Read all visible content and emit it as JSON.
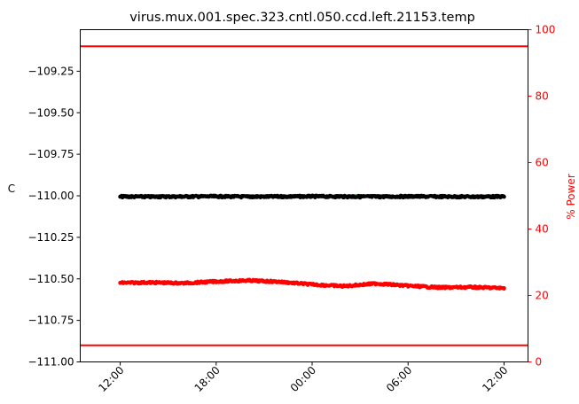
{
  "chart_data": {
    "type": "line",
    "title": "virus.mux.001.spec.323.cntl.050.ccd.left.21153.temp",
    "left_axis": {
      "label": "C",
      "ylim": [
        -111.0,
        -109.0
      ],
      "ticks": [
        -111.0,
        -110.75,
        -110.5,
        -110.25,
        -110.0,
        -109.75,
        -109.5,
        -109.25
      ],
      "tick_labels": [
        "−111.00",
        "−110.75",
        "−110.50",
        "−110.25",
        "−110.00",
        "−109.75",
        "−109.50",
        "−109.25"
      ]
    },
    "right_axis": {
      "label": "% Power",
      "color": "#ff0000",
      "ylim": [
        0,
        100
      ],
      "ticks": [
        0,
        20,
        40,
        60,
        80,
        100
      ],
      "tick_labels": [
        "0",
        "20",
        "40",
        "60",
        "80",
        "100"
      ]
    },
    "x_axis": {
      "unit": "hours",
      "xlim": [
        -2.5,
        25.5
      ],
      "ticks": [
        0,
        6,
        12,
        18,
        24
      ],
      "tick_labels": [
        "12:00",
        "18:00",
        "00:00",
        "06:00",
        "12:00"
      ]
    },
    "series": [
      {
        "axis": "left",
        "color": "#008000",
        "style": "line",
        "x": [
          0,
          6,
          12,
          18,
          24
        ],
        "values": [
          -110.0,
          -110.0,
          -110.0,
          -110.0,
          -110.0
        ]
      },
      {
        "axis": "left",
        "color": "#000000",
        "style": "markers",
        "x": [
          0,
          2,
          4,
          6,
          8,
          10,
          12,
          14,
          16,
          18,
          20,
          22,
          24
        ],
        "values": [
          -110.005,
          -110.006,
          -110.005,
          -110.004,
          -110.006,
          -110.005,
          -110.004,
          -110.005,
          -110.006,
          -110.004,
          -110.005,
          -110.006,
          -110.005
        ]
      },
      {
        "axis": "right",
        "color": "#ff0000",
        "style": "markers",
        "x": [
          0,
          2,
          4,
          6,
          8,
          10,
          12,
          14,
          16,
          18,
          20,
          22,
          24
        ],
        "values": [
          23.8,
          23.9,
          23.7,
          24.2,
          24.5,
          24.1,
          23.3,
          22.8,
          23.6,
          22.9,
          22.4,
          22.5,
          22.2
        ]
      }
    ],
    "reference_lines": [
      {
        "axis": "right",
        "value": 95,
        "color": "#ff0000"
      },
      {
        "axis": "right",
        "value": 5,
        "color": "#ff0000"
      }
    ],
    "grid": false,
    "legend": "none"
  }
}
